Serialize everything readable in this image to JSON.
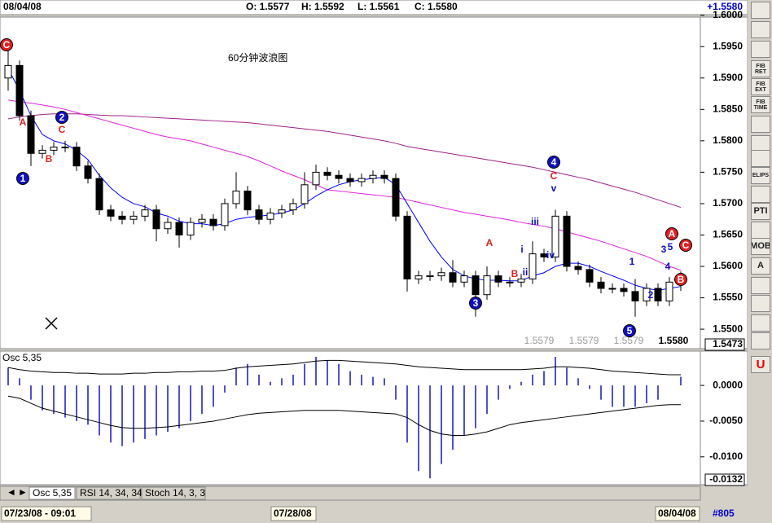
{
  "header": {
    "date": "08/04/08",
    "open": "O: 1.5577",
    "high": "H: 1.5592",
    "low": "L: 1.5561",
    "close": "C: 1.5580",
    "last": "+1.5580"
  },
  "chart_data": [
    {
      "type": "candlestick",
      "title": "60分钟波浪图",
      "open": [
        1.59,
        1.592,
        1.584,
        1.578,
        1.5785,
        1.579,
        1.579,
        1.576,
        1.574,
        1.569,
        1.568,
        1.5675,
        1.568,
        1.569,
        1.566,
        1.567,
        1.565,
        1.567,
        1.5675,
        1.5665,
        1.57,
        1.572,
        1.569,
        1.5675,
        1.5685,
        1.569,
        1.57,
        1.573,
        1.575,
        1.5745,
        1.574,
        1.5735,
        1.574,
        1.5745,
        1.574,
        1.568,
        1.558,
        1.5585,
        1.5585,
        1.559,
        1.5575,
        1.5585,
        1.5555,
        1.5585,
        1.5575,
        1.5575,
        1.558,
        1.562,
        1.5615,
        1.568,
        1.56,
        1.5595,
        1.5575,
        1.5565,
        1.5565,
        1.556,
        1.5545,
        1.5565,
        1.5545,
        1.5577
      ],
      "high": [
        1.5945,
        1.5928,
        1.5848,
        1.5793,
        1.5798,
        1.58,
        1.5798,
        1.5768,
        1.5748,
        1.5698,
        1.5688,
        1.5688,
        1.5698,
        1.5698,
        1.5678,
        1.5678,
        1.5678,
        1.5683,
        1.5683,
        1.5708,
        1.575,
        1.5728,
        1.5698,
        1.5693,
        1.5698,
        1.5708,
        1.575,
        1.5762,
        1.5758,
        1.5753,
        1.5748,
        1.5748,
        1.5753,
        1.5753,
        1.5748,
        1.5688,
        1.5593,
        1.5593,
        1.5598,
        1.561,
        1.5593,
        1.5593,
        1.56,
        1.5593,
        1.5583,
        1.5588,
        1.564,
        1.5628,
        1.569,
        1.5688,
        1.5608,
        1.5603,
        1.5583,
        1.5573,
        1.5573,
        1.558,
        1.5573,
        1.5573,
        1.5583,
        1.5592
      ],
      "low": [
        1.588,
        1.5832,
        1.576,
        1.5772,
        1.5777,
        1.5782,
        1.5752,
        1.5732,
        1.5682,
        1.5672,
        1.5667,
        1.5667,
        1.5672,
        1.564,
        1.5652,
        1.563,
        1.5642,
        1.5662,
        1.5657,
        1.5657,
        1.5692,
        1.5682,
        1.5667,
        1.5667,
        1.5677,
        1.5682,
        1.5692,
        1.5722,
        1.5737,
        1.5732,
        1.5727,
        1.5727,
        1.5732,
        1.5732,
        1.5672,
        1.556,
        1.5572,
        1.5577,
        1.5577,
        1.5567,
        1.5567,
        1.552,
        1.5547,
        1.5567,
        1.5567,
        1.5567,
        1.5572,
        1.5607,
        1.5607,
        1.5592,
        1.5587,
        1.5567,
        1.5557,
        1.5557,
        1.5552,
        1.552,
        1.5537,
        1.5537,
        1.5537,
        1.5561
      ],
      "close": [
        1.592,
        1.584,
        1.578,
        1.5785,
        1.579,
        1.579,
        1.576,
        1.574,
        1.569,
        1.568,
        1.5675,
        1.568,
        1.569,
        1.566,
        1.567,
        1.565,
        1.567,
        1.5675,
        1.5665,
        1.57,
        1.572,
        1.569,
        1.5675,
        1.5685,
        1.569,
        1.57,
        1.573,
        1.575,
        1.5745,
        1.574,
        1.5735,
        1.574,
        1.5745,
        1.574,
        1.568,
        1.558,
        1.5585,
        1.5585,
        1.559,
        1.5575,
        1.5585,
        1.5555,
        1.5585,
        1.5575,
        1.5575,
        1.558,
        1.562,
        1.5615,
        1.568,
        1.56,
        1.5595,
        1.5575,
        1.5565,
        1.5565,
        1.556,
        1.5545,
        1.5565,
        1.5545,
        1.5575,
        1.558
      ],
      "up_color": "#ffffff",
      "down_color": "#000000",
      "series": [
        {
          "color": "#0000ff",
          "values": [
            1.5915,
            1.588,
            1.584,
            1.581,
            1.58,
            1.5795,
            1.5785,
            1.577,
            1.5745,
            1.5725,
            1.571,
            1.57,
            1.5695,
            1.5685,
            1.568,
            1.5672,
            1.5668,
            1.5668,
            1.5665,
            1.5668,
            1.5675,
            1.5678,
            1.568,
            1.5682,
            1.5685,
            1.569,
            1.57,
            1.5712,
            1.5722,
            1.573,
            1.5735,
            1.5738,
            1.574,
            1.5742,
            1.573,
            1.57,
            1.567,
            1.564,
            1.5615,
            1.5595,
            1.5585,
            1.558,
            1.5578,
            1.5578,
            1.5577,
            1.5577,
            1.5585,
            1.559,
            1.56,
            1.5605,
            1.5605,
            1.56,
            1.5592,
            1.5585,
            1.5578,
            1.557,
            1.5565,
            1.5562,
            1.5565,
            1.5568
          ]
        },
        {
          "color": "#e020e0",
          "values": [
            1.5865,
            1.5862,
            1.586,
            1.5857,
            1.5854,
            1.585,
            1.5845,
            1.584,
            1.5835,
            1.583,
            1.5825,
            1.582,
            1.5815,
            1.581,
            1.5806,
            1.5803,
            1.58,
            1.5795,
            1.579,
            1.5785,
            1.578,
            1.5775,
            1.5768,
            1.576,
            1.5752,
            1.5745,
            1.5738,
            1.573,
            1.5722,
            1.572,
            1.5718,
            1.5716,
            1.5714,
            1.5712,
            1.571,
            1.5706,
            1.5702,
            1.5698,
            1.5694,
            1.569,
            1.5686,
            1.5683,
            1.568,
            1.5677,
            1.5674,
            1.567,
            1.5667,
            1.5664,
            1.566,
            1.5655,
            1.565,
            1.5645,
            1.564,
            1.5634,
            1.5628,
            1.5622,
            1.5616,
            1.5608,
            1.56,
            1.5594
          ]
        },
        {
          "color": "#a0208a",
          "values": [
            1.5835,
            1.5838,
            1.584,
            1.5842,
            1.5843,
            1.5843,
            1.5843,
            1.5842,
            1.5841,
            1.584,
            1.584,
            1.5839,
            1.5838,
            1.5837,
            1.5836,
            1.5835,
            1.5834,
            1.5833,
            1.5832,
            1.5831,
            1.583,
            1.5829,
            1.5827,
            1.5825,
            1.5823,
            1.5821,
            1.5819,
            1.5817,
            1.5815,
            1.5812,
            1.5809,
            1.5806,
            1.5803,
            1.58,
            1.5796,
            1.5791,
            1.5788,
            1.5785,
            1.5782,
            1.5779,
            1.5776,
            1.5773,
            1.577,
            1.5767,
            1.5764,
            1.5761,
            1.5758,
            1.5754,
            1.575,
            1.5746,
            1.5742,
            1.5738,
            1.5733,
            1.5728,
            1.5723,
            1.5718,
            1.5712,
            1.5706,
            1.57,
            1.5694
          ]
        }
      ],
      "ylim": [
        1.5469,
        1.5997
      ],
      "yticks": [
        {
          "value": 1.55,
          "label": "1.5500"
        },
        {
          "value": 1.555,
          "label": "1.5550"
        },
        {
          "value": 1.56,
          "label": "1.5600"
        },
        {
          "value": 1.565,
          "label": "1.5650"
        },
        {
          "value": 1.57,
          "label": "1.5700"
        },
        {
          "value": 1.575,
          "label": "1.5750"
        },
        {
          "value": 1.58,
          "label": "1.5800"
        },
        {
          "value": 1.585,
          "label": "1.5850"
        },
        {
          "value": 1.59,
          "label": "1.5900"
        },
        {
          "value": 1.595,
          "label": "1.5950"
        },
        {
          "value": 1.6,
          "label": "1.6000"
        }
      ],
      "price_marker": "1.5473",
      "readouts": [
        "1.5579",
        "1.5579",
        "1.5579",
        "1.5580"
      ],
      "wave_labels": [
        "C",
        "A",
        "2",
        "C",
        "B",
        "1",
        "4",
        "C",
        "v",
        "iii",
        "A",
        "i",
        "iv",
        "ii",
        "B",
        "3",
        "A",
        "C",
        "3",
        "5",
        "1",
        "4",
        "B",
        "2",
        "5"
      ]
    },
    {
      "type": "bar",
      "title": "Osc 5,35",
      "color": "#5050d0",
      "values": [
        0.0025,
        0.001,
        -0.002,
        -0.0035,
        -0.004,
        -0.0045,
        -0.005,
        -0.0055,
        -0.007,
        -0.008,
        -0.0085,
        -0.008,
        -0.0075,
        -0.007,
        -0.0065,
        -0.006,
        -0.005,
        -0.004,
        -0.003,
        -0.001,
        0.0025,
        0.003,
        0.0015,
        0.0005,
        0.001,
        0.0015,
        0.003,
        0.004,
        0.0035,
        0.003,
        0.002,
        0.0015,
        0.0012,
        0.001,
        -0.002,
        -0.008,
        -0.012,
        -0.013,
        -0.011,
        -0.009,
        -0.007,
        -0.006,
        -0.004,
        -0.002,
        -0.0005,
        0.0005,
        0.0015,
        0.002,
        0.004,
        0.0025,
        0.001,
        -0.0005,
        -0.002,
        -0.003,
        -0.003,
        -0.003,
        -0.0025,
        -0.002,
        0.0,
        0.0012
      ],
      "series": [
        {
          "color": "#000000",
          "values": [
            0.0025,
            0.0022,
            0.002,
            0.0019,
            0.0018,
            0.0018,
            0.0017,
            0.0017,
            0.0016,
            0.0016,
            0.0016,
            0.0017,
            0.0017,
            0.0018,
            0.0018,
            0.0019,
            0.0019,
            0.002,
            0.002,
            0.0021,
            0.0024,
            0.0026,
            0.0027,
            0.0028,
            0.0029,
            0.003,
            0.0032,
            0.0034,
            0.0035,
            0.0035,
            0.0034,
            0.0033,
            0.0032,
            0.0031,
            0.003,
            0.0028,
            0.0026,
            0.0025,
            0.0024,
            0.0023,
            0.0022,
            0.0022,
            0.0022,
            0.0022,
            0.0022,
            0.0022,
            0.0023,
            0.0024,
            0.0026,
            0.0026,
            0.0025,
            0.0024,
            0.0022,
            0.002,
            0.0019,
            0.0018,
            0.0017,
            0.0016,
            0.0015,
            0.0015
          ]
        },
        {
          "color": "#000000",
          "values": [
            -0.0015,
            -0.0018,
            -0.0025,
            -0.0032,
            -0.0036,
            -0.004,
            -0.0044,
            -0.0048,
            -0.0052,
            -0.0056,
            -0.0059,
            -0.006,
            -0.006,
            -0.0059,
            -0.0058,
            -0.0056,
            -0.0054,
            -0.0052,
            -0.005,
            -0.0047,
            -0.0044,
            -0.0041,
            -0.0039,
            -0.0038,
            -0.0037,
            -0.0036,
            -0.0035,
            -0.0035,
            -0.0035,
            -0.0035,
            -0.0036,
            -0.0037,
            -0.0038,
            -0.0039,
            -0.004,
            -0.0045,
            -0.0055,
            -0.0063,
            -0.0068,
            -0.007,
            -0.007,
            -0.0068,
            -0.0065,
            -0.006,
            -0.0055,
            -0.0052,
            -0.005,
            -0.0048,
            -0.0046,
            -0.0044,
            -0.0042,
            -0.004,
            -0.0038,
            -0.0036,
            -0.0034,
            -0.0032,
            -0.003,
            -0.0028,
            -0.0027,
            -0.0027
          ]
        }
      ],
      "ylim": [
        -0.0139,
        0.0048
      ],
      "yticks": [
        {
          "value": 0,
          "label": "0.0000"
        },
        {
          "value": -0.005,
          "label": "-0.0050"
        },
        {
          "value": -0.01,
          "label": "-0.0100"
        }
      ],
      "price_marker": "-0.0132"
    }
  ],
  "tabs": [
    "Osc 5,35",
    "RSI 14, 34, 34",
    "Stoch 14, 3, 3"
  ],
  "time_axis": [
    "07/23/08 - 09:01",
    "07/28/08",
    "08/04/08"
  ],
  "bar_count": "#805",
  "toolbar": [
    "FIB RET",
    "FIB EXT",
    "FIB TIME",
    "ELIPS",
    "PTI",
    "MOB",
    "A",
    "U"
  ]
}
